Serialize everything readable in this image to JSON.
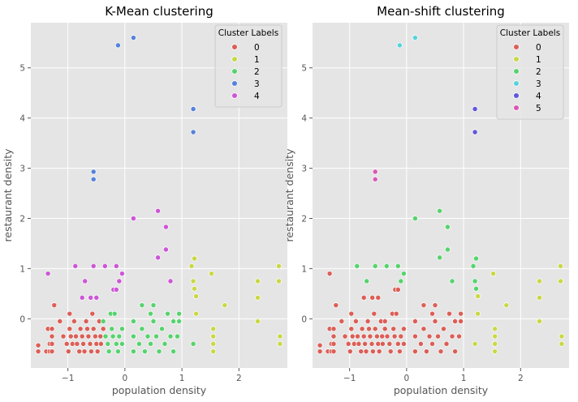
{
  "chart_data": [
    {
      "type": "scatter",
      "title": "K-Mean clustering",
      "xlabel": "population density",
      "ylabel": "restaurant density",
      "xlim": [
        -1.65,
        2.85
      ],
      "ylim": [
        -0.98,
        5.9
      ],
      "xticks": [
        -1,
        0,
        1,
        2
      ],
      "yticks": [
        0,
        1,
        2,
        3,
        4,
        5
      ],
      "grid": true,
      "legend": {
        "title": "Cluster Labels",
        "placement": "top-right"
      },
      "series": [
        {
          "label": "0",
          "color": "#db5f57",
          "points": [
            [
              -1.52,
              -0.53
            ],
            [
              -1.52,
              -0.65
            ],
            [
              -1.38,
              -0.65
            ],
            [
              -1.35,
              -0.2
            ],
            [
              -1.32,
              -0.5
            ],
            [
              -1.32,
              -0.65
            ],
            [
              -1.28,
              -0.2
            ],
            [
              -1.28,
              -0.35
            ],
            [
              -1.28,
              -0.5
            ],
            [
              -1.28,
              -0.65
            ],
            [
              -1.24,
              0.27
            ],
            [
              -1.14,
              -0.05
            ],
            [
              -1.08,
              -0.35
            ],
            [
              -1.02,
              -0.5
            ],
            [
              -0.99,
              -0.65
            ],
            [
              -0.97,
              0.1
            ],
            [
              -0.97,
              -0.2
            ],
            [
              -0.95,
              -0.35
            ],
            [
              -0.92,
              -0.5
            ],
            [
              -0.89,
              -0.05
            ],
            [
              -0.86,
              -0.35
            ],
            [
              -0.84,
              -0.5
            ],
            [
              -0.8,
              -0.65
            ],
            [
              -0.78,
              -0.2
            ],
            [
              -0.75,
              -0.35
            ],
            [
              -0.73,
              -0.5
            ],
            [
              -0.71,
              -0.65
            ],
            [
              -0.68,
              -0.05
            ],
            [
              -0.66,
              -0.2
            ],
            [
              -0.64,
              -0.35
            ],
            [
              -0.61,
              -0.5
            ],
            [
              -0.59,
              -0.65
            ],
            [
              -0.57,
              0.1
            ],
            [
              -0.55,
              -0.2
            ],
            [
              -0.52,
              -0.35
            ],
            [
              -0.5,
              -0.5
            ],
            [
              -0.48,
              -0.65
            ],
            [
              -0.45,
              -0.05
            ],
            [
              -0.43,
              -0.35
            ],
            [
              -0.42,
              -0.5
            ],
            [
              -0.38,
              -0.2
            ]
          ]
        },
        {
          "label": "1",
          "color": "#c9d845",
          "points": [
            [
              1.17,
              1.05
            ],
            [
              1.2,
              0.75
            ],
            [
              1.22,
              1.2
            ],
            [
              1.22,
              0.6
            ],
            [
              1.25,
              0.45
            ],
            [
              1.25,
              0.1
            ],
            [
              1.52,
              0.9
            ],
            [
              1.55,
              -0.2
            ],
            [
              1.55,
              -0.35
            ],
            [
              1.55,
              -0.5
            ],
            [
              1.55,
              -0.65
            ],
            [
              1.75,
              0.27
            ],
            [
              2.33,
              0.75
            ],
            [
              2.33,
              0.42
            ],
            [
              2.33,
              -0.05
            ],
            [
              2.7,
              1.05
            ],
            [
              2.7,
              0.75
            ],
            [
              2.72,
              -0.35
            ],
            [
              2.72,
              -0.5
            ]
          ]
        },
        {
          "label": "2",
          "color": "#57d36d",
          "points": [
            [
              -0.38,
              -0.05
            ],
            [
              -0.34,
              -0.35
            ],
            [
              -0.3,
              -0.5
            ],
            [
              -0.28,
              -0.65
            ],
            [
              -0.25,
              0.1
            ],
            [
              -0.23,
              -0.2
            ],
            [
              -0.21,
              -0.35
            ],
            [
              -0.18,
              0.1
            ],
            [
              -0.15,
              -0.5
            ],
            [
              -0.12,
              -0.65
            ],
            [
              -0.1,
              -0.35
            ],
            [
              -0.05,
              -0.5
            ],
            [
              -0.05,
              -0.2
            ],
            [
              0.15,
              -0.05
            ],
            [
              0.15,
              -0.35
            ],
            [
              0.15,
              -0.65
            ],
            [
              0.25,
              -0.5
            ],
            [
              0.3,
              0.27
            ],
            [
              0.3,
              -0.2
            ],
            [
              0.35,
              -0.65
            ],
            [
              0.4,
              -0.35
            ],
            [
              0.45,
              0.1
            ],
            [
              0.45,
              -0.5
            ],
            [
              0.5,
              0.27
            ],
            [
              0.5,
              -0.05
            ],
            [
              0.55,
              -0.35
            ],
            [
              0.6,
              -0.65
            ],
            [
              0.65,
              -0.2
            ],
            [
              0.7,
              -0.5
            ],
            [
              0.75,
              0.1
            ],
            [
              0.8,
              -0.35
            ],
            [
              0.85,
              -0.05
            ],
            [
              0.85,
              -0.65
            ],
            [
              0.92,
              -0.35
            ],
            [
              0.95,
              0.1
            ],
            [
              0.95,
              -0.05
            ],
            [
              1.2,
              -0.5
            ]
          ]
        },
        {
          "label": "3",
          "color": "#5782db",
          "points": [
            [
              -0.12,
              5.45
            ],
            [
              0.15,
              5.6
            ],
            [
              -0.55,
              2.93
            ],
            [
              -0.55,
              2.78
            ],
            [
              1.2,
              4.18
            ],
            [
              1.2,
              3.72
            ]
          ]
        },
        {
          "label": "4",
          "color": "#cd56d6",
          "points": [
            [
              -1.35,
              0.9
            ],
            [
              -0.87,
              1.05
            ],
            [
              -0.75,
              0.42
            ],
            [
              -0.7,
              0.75
            ],
            [
              -0.6,
              0.42
            ],
            [
              -0.55,
              1.05
            ],
            [
              -0.5,
              0.42
            ],
            [
              -0.35,
              1.05
            ],
            [
              -0.2,
              0.58
            ],
            [
              -0.15,
              1.05
            ],
            [
              -0.15,
              0.58
            ],
            [
              -0.1,
              0.75
            ],
            [
              -0.05,
              0.9
            ],
            [
              0.15,
              2.0
            ],
            [
              0.58,
              2.15
            ],
            [
              0.58,
              1.22
            ],
            [
              0.72,
              1.83
            ],
            [
              0.72,
              1.38
            ],
            [
              0.8,
              0.75
            ]
          ]
        }
      ]
    },
    {
      "type": "scatter",
      "title": "Mean-shift clustering",
      "xlabel": "population density",
      "ylabel": "restaurant density",
      "xlim": [
        -1.65,
        2.85
      ],
      "ylim": [
        -0.98,
        5.9
      ],
      "xticks": [
        -1,
        0,
        1,
        2
      ],
      "yticks": [
        0,
        1,
        2,
        3,
        4,
        5
      ],
      "grid": true,
      "legend": {
        "title": "Cluster Labels",
        "placement": "top-right"
      },
      "series": [
        {
          "label": "0",
          "color": "#db5f57",
          "points": [
            [
              -1.52,
              -0.53
            ],
            [
              -1.52,
              -0.65
            ],
            [
              -1.38,
              -0.65
            ],
            [
              -1.35,
              0.9
            ],
            [
              -1.35,
              -0.2
            ],
            [
              -1.32,
              -0.5
            ],
            [
              -1.32,
              -0.65
            ],
            [
              -1.28,
              -0.2
            ],
            [
              -1.28,
              -0.35
            ],
            [
              -1.28,
              -0.5
            ],
            [
              -1.28,
              -0.65
            ],
            [
              -1.24,
              0.27
            ],
            [
              -1.14,
              -0.05
            ],
            [
              -1.08,
              -0.35
            ],
            [
              -1.02,
              -0.5
            ],
            [
              -0.99,
              -0.65
            ],
            [
              -0.97,
              0.1
            ],
            [
              -0.97,
              -0.2
            ],
            [
              -0.95,
              -0.35
            ],
            [
              -0.92,
              -0.5
            ],
            [
              -0.89,
              -0.05
            ],
            [
              -0.86,
              -0.35
            ],
            [
              -0.84,
              -0.5
            ],
            [
              -0.8,
              -0.65
            ],
            [
              -0.78,
              -0.2
            ],
            [
              -0.75,
              0.42
            ],
            [
              -0.75,
              -0.35
            ],
            [
              -0.73,
              -0.5
            ],
            [
              -0.71,
              -0.65
            ],
            [
              -0.68,
              -0.05
            ],
            [
              -0.66,
              -0.2
            ],
            [
              -0.64,
              -0.35
            ],
            [
              -0.61,
              -0.5
            ],
            [
              -0.6,
              0.42
            ],
            [
              -0.59,
              -0.65
            ],
            [
              -0.57,
              0.1
            ],
            [
              -0.55,
              -0.2
            ],
            [
              -0.52,
              -0.35
            ],
            [
              -0.5,
              0.42
            ],
            [
              -0.5,
              -0.5
            ],
            [
              -0.48,
              -0.65
            ],
            [
              -0.45,
              -0.05
            ],
            [
              -0.43,
              -0.35
            ],
            [
              -0.42,
              -0.5
            ],
            [
              -0.38,
              -0.2
            ],
            [
              -0.38,
              -0.05
            ],
            [
              -0.34,
              -0.35
            ],
            [
              -0.3,
              -0.5
            ],
            [
              -0.28,
              -0.65
            ],
            [
              -0.25,
              0.1
            ],
            [
              -0.23,
              -0.2
            ],
            [
              -0.21,
              -0.35
            ],
            [
              -0.2,
              0.58
            ],
            [
              -0.18,
              0.1
            ],
            [
              -0.15,
              0.58
            ],
            [
              -0.15,
              -0.5
            ],
            [
              -0.12,
              -0.65
            ],
            [
              -0.1,
              -0.35
            ],
            [
              -0.05,
              -0.5
            ],
            [
              -0.05,
              -0.2
            ],
            [
              0.15,
              -0.05
            ],
            [
              0.15,
              -0.35
            ],
            [
              0.15,
              -0.65
            ],
            [
              0.25,
              -0.5
            ],
            [
              0.3,
              0.27
            ],
            [
              0.3,
              -0.2
            ],
            [
              0.35,
              -0.65
            ],
            [
              0.4,
              -0.35
            ],
            [
              0.45,
              0.1
            ],
            [
              0.45,
              -0.5
            ],
            [
              0.5,
              0.27
            ],
            [
              0.5,
              -0.05
            ],
            [
              0.55,
              -0.35
            ],
            [
              0.6,
              -0.65
            ],
            [
              0.65,
              -0.2
            ],
            [
              0.7,
              -0.5
            ],
            [
              0.75,
              0.1
            ],
            [
              0.8,
              -0.35
            ],
            [
              0.85,
              -0.05
            ],
            [
              0.85,
              -0.65
            ],
            [
              0.92,
              -0.35
            ],
            [
              0.95,
              0.1
            ],
            [
              0.95,
              -0.05
            ]
          ]
        },
        {
          "label": "1",
          "color": "#c9d845",
          "points": [
            [
              1.2,
              -0.5
            ],
            [
              1.25,
              0.45
            ],
            [
              1.25,
              0.1
            ],
            [
              1.52,
              0.9
            ],
            [
              1.55,
              -0.2
            ],
            [
              1.55,
              -0.35
            ],
            [
              1.55,
              -0.5
            ],
            [
              1.55,
              -0.65
            ],
            [
              1.75,
              0.27
            ],
            [
              2.33,
              0.75
            ],
            [
              2.33,
              0.42
            ],
            [
              2.33,
              -0.05
            ],
            [
              2.7,
              1.05
            ],
            [
              2.7,
              0.75
            ],
            [
              2.72,
              -0.35
            ],
            [
              2.72,
              -0.5
            ]
          ]
        },
        {
          "label": "2",
          "color": "#57d36d",
          "points": [
            [
              -0.87,
              1.05
            ],
            [
              -0.7,
              0.75
            ],
            [
              -0.55,
              1.05
            ],
            [
              -0.35,
              1.05
            ],
            [
              -0.15,
              1.05
            ],
            [
              -0.1,
              0.75
            ],
            [
              -0.05,
              0.9
            ],
            [
              0.15,
              2.0
            ],
            [
              0.58,
              2.15
            ],
            [
              0.58,
              1.22
            ],
            [
              0.72,
              1.83
            ],
            [
              0.72,
              1.38
            ],
            [
              0.8,
              0.75
            ],
            [
              1.17,
              1.05
            ],
            [
              1.2,
              0.75
            ],
            [
              1.22,
              1.2
            ],
            [
              1.22,
              0.6
            ]
          ]
        },
        {
          "label": "3",
          "color": "#57d3db",
          "points": [
            [
              -0.12,
              5.45
            ],
            [
              0.15,
              5.6
            ]
          ]
        },
        {
          "label": "4",
          "color": "#5f57db",
          "points": [
            [
              1.2,
              4.18
            ],
            [
              1.2,
              3.72
            ]
          ]
        },
        {
          "label": "5",
          "color": "#db57b2",
          "points": [
            [
              -0.55,
              2.93
            ],
            [
              -0.55,
              2.78
            ]
          ]
        }
      ]
    }
  ]
}
